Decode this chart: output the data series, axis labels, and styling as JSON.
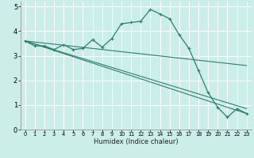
{
  "title": "",
  "xlabel": "Humidex (Indice chaleur)",
  "background_color": "#cceee8",
  "grid_color": "#ffffff",
  "line_color": "#2e7d6e",
  "xlim": [
    -0.5,
    23.5
  ],
  "ylim": [
    0,
    5.2
  ],
  "xticks": [
    0,
    1,
    2,
    3,
    4,
    5,
    6,
    7,
    8,
    9,
    10,
    11,
    12,
    13,
    14,
    15,
    16,
    17,
    18,
    19,
    20,
    21,
    22,
    23
  ],
  "yticks": [
    0,
    1,
    2,
    3,
    4,
    5
  ],
  "curve1": {
    "x": [
      0,
      1,
      2,
      3,
      4,
      5,
      6,
      7,
      8,
      9,
      10,
      11,
      12,
      13,
      14,
      15,
      16,
      17,
      18,
      19,
      20,
      21,
      22,
      23
    ],
    "y": [
      3.6,
      3.4,
      3.4,
      3.25,
      3.45,
      3.25,
      3.3,
      3.65,
      3.35,
      3.7,
      4.3,
      4.35,
      4.4,
      4.88,
      4.7,
      4.5,
      3.85,
      3.3,
      2.4,
      1.5,
      0.9,
      0.5,
      0.85,
      0.65
    ]
  },
  "line1": {
    "x": [
      0,
      23
    ],
    "y": [
      3.6,
      0.65
    ]
  },
  "line2": {
    "x": [
      0,
      23
    ],
    "y": [
      3.6,
      2.6
    ]
  },
  "line3": {
    "x": [
      0,
      23
    ],
    "y": [
      3.6,
      0.85
    ]
  }
}
